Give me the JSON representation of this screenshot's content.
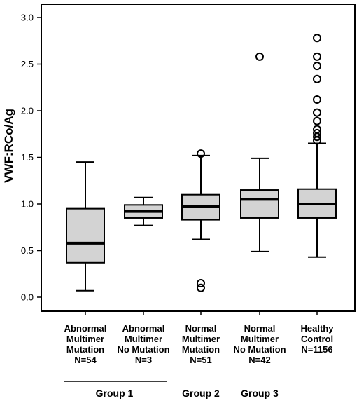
{
  "chart_data": {
    "type": "box",
    "ylabel": "VWF:RCo/Ag",
    "ylim": [
      0.0,
      3.0
    ],
    "yticks": [
      "0.0",
      "0.5",
      "1.0",
      "1.5",
      "2.0",
      "2.5",
      "3.0"
    ],
    "box_fill": "#d3d3d3",
    "categories": [
      {
        "lines": [
          "Abnormal",
          "Multimer",
          "Mutation",
          "N=54"
        ],
        "whisker_low": 0.07,
        "q1": 0.37,
        "median": 0.58,
        "q3": 0.95,
        "whisker_high": 1.45,
        "outliers": []
      },
      {
        "lines": [
          "Abnormal",
          "Multimer",
          "No Mutation",
          "N=3"
        ],
        "whisker_low": 0.77,
        "q1": 0.85,
        "median": 0.92,
        "q3": 0.99,
        "whisker_high": 1.07,
        "outliers": []
      },
      {
        "lines": [
          "Normal",
          "Multimer",
          "Mutation",
          "N=51"
        ],
        "whisker_low": 0.62,
        "q1": 0.83,
        "median": 0.97,
        "q3": 1.1,
        "whisker_high": 1.52,
        "outliers": [
          1.54,
          0.15,
          0.1
        ]
      },
      {
        "lines": [
          "Normal",
          "Multimer",
          "No Mutation",
          "N=42"
        ],
        "whisker_low": 0.49,
        "q1": 0.85,
        "median": 1.05,
        "q3": 1.15,
        "whisker_high": 1.49,
        "outliers": [
          2.58
        ]
      },
      {
        "lines": [
          "Healthy",
          "Control",
          "N=1156"
        ],
        "whisker_low": 0.43,
        "q1": 0.85,
        "median": 1.0,
        "q3": 1.16,
        "whisker_high": 1.65,
        "outliers": [
          2.78,
          2.58,
          2.48,
          2.34,
          2.12,
          1.98,
          1.89,
          1.8,
          1.76,
          1.72,
          1.68
        ]
      }
    ],
    "groups": [
      {
        "label": "Group 1",
        "span": [
          0,
          1
        ]
      },
      {
        "label": "Group 2",
        "span": [
          2,
          2
        ]
      },
      {
        "label": "Group 3",
        "span": [
          3,
          3
        ]
      }
    ]
  }
}
